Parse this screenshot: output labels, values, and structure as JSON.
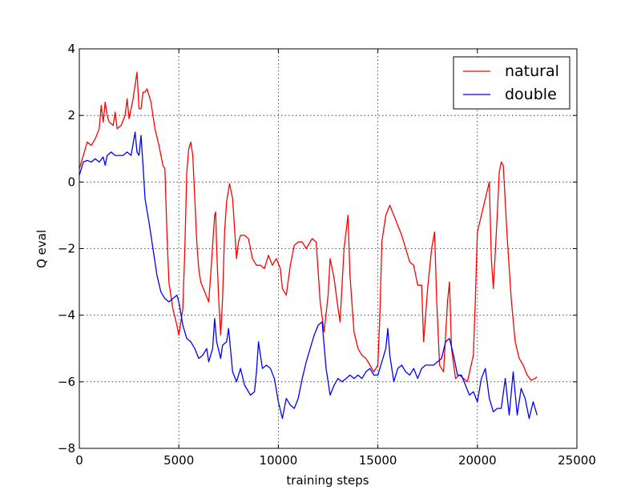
{
  "chart_data": {
    "type": "line",
    "title": "",
    "xlabel": "training steps",
    "ylabel": "Q eval",
    "xlim": [
      0,
      25000
    ],
    "ylim": [
      -8,
      4
    ],
    "xticks": [
      0,
      5000,
      10000,
      15000,
      20000,
      25000
    ],
    "yticks": [
      -8,
      -6,
      -4,
      -2,
      0,
      2,
      4
    ],
    "xtick_labels": [
      "0",
      "5000",
      "10000",
      "15000",
      "20000",
      "25000"
    ],
    "ytick_labels": [
      "−8",
      "−6",
      "−4",
      "−2",
      "0",
      "2",
      "4"
    ],
    "grid": true,
    "legend_position": "top-right",
    "series": [
      {
        "name": "natural",
        "color": "#ff0000",
        "points": [
          [
            0,
            0.4
          ],
          [
            200,
            0.8
          ],
          [
            400,
            1.2
          ],
          [
            600,
            1.1
          ],
          [
            800,
            1.3
          ],
          [
            1000,
            1.6
          ],
          [
            1100,
            2.3
          ],
          [
            1200,
            1.8
          ],
          [
            1300,
            2.4
          ],
          [
            1400,
            2.0
          ],
          [
            1500,
            1.8
          ],
          [
            1700,
            1.7
          ],
          [
            1800,
            2.1
          ],
          [
            1900,
            1.6
          ],
          [
            2100,
            1.7
          ],
          [
            2300,
            2.0
          ],
          [
            2400,
            2.5
          ],
          [
            2500,
            1.9
          ],
          [
            2700,
            2.5
          ],
          [
            2900,
            3.3
          ],
          [
            3000,
            2.2
          ],
          [
            3100,
            2.2
          ],
          [
            3200,
            2.7
          ],
          [
            3300,
            2.7
          ],
          [
            3400,
            2.8
          ],
          [
            3600,
            2.4
          ],
          [
            3800,
            1.6
          ],
          [
            4000,
            1.1
          ],
          [
            4200,
            0.5
          ],
          [
            4300,
            0.4
          ],
          [
            4400,
            -1.5
          ],
          [
            4500,
            -3.0
          ],
          [
            4700,
            -3.8
          ],
          [
            4900,
            -4.3
          ],
          [
            5000,
            -4.6
          ],
          [
            5200,
            -3.8
          ],
          [
            5300,
            -2.0
          ],
          [
            5400,
            0.3
          ],
          [
            5500,
            1.0
          ],
          [
            5600,
            1.2
          ],
          [
            5700,
            0.8
          ],
          [
            5800,
            -0.5
          ],
          [
            5900,
            -1.8
          ],
          [
            6000,
            -2.6
          ],
          [
            6100,
            -3.0
          ],
          [
            6300,
            -3.3
          ],
          [
            6500,
            -3.6
          ],
          [
            6600,
            -2.8
          ],
          [
            6800,
            -1.0
          ],
          [
            6850,
            -0.9
          ],
          [
            6900,
            -2.0
          ],
          [
            7000,
            -3.5
          ],
          [
            7100,
            -4.6
          ],
          [
            7200,
            -3.5
          ],
          [
            7300,
            -1.5
          ],
          [
            7400,
            -0.6
          ],
          [
            7550,
            -0.05
          ],
          [
            7700,
            -0.5
          ],
          [
            7900,
            -2.3
          ],
          [
            8000,
            -1.8
          ],
          [
            8100,
            -1.6
          ],
          [
            8300,
            -1.6
          ],
          [
            8500,
            -1.7
          ],
          [
            8700,
            -2.3
          ],
          [
            8900,
            -2.5
          ],
          [
            9100,
            -2.5
          ],
          [
            9300,
            -2.6
          ],
          [
            9500,
            -2.2
          ],
          [
            9700,
            -2.5
          ],
          [
            9900,
            -2.3
          ],
          [
            10100,
            -2.6
          ],
          [
            10200,
            -3.2
          ],
          [
            10400,
            -3.4
          ],
          [
            10600,
            -2.5
          ],
          [
            10800,
            -1.9
          ],
          [
            11000,
            -1.8
          ],
          [
            11200,
            -1.8
          ],
          [
            11400,
            -2.0
          ],
          [
            11600,
            -1.8
          ],
          [
            11700,
            -1.7
          ],
          [
            11900,
            -1.8
          ],
          [
            12100,
            -3.6
          ],
          [
            12300,
            -4.5
          ],
          [
            12500,
            -3.4
          ],
          [
            12600,
            -2.3
          ],
          [
            12800,
            -2.9
          ],
          [
            13000,
            -3.8
          ],
          [
            13100,
            -4.2
          ],
          [
            13300,
            -2.0
          ],
          [
            13500,
            -1.0
          ],
          [
            13600,
            -2.8
          ],
          [
            13800,
            -4.5
          ],
          [
            14000,
            -5.0
          ],
          [
            14200,
            -5.2
          ],
          [
            14400,
            -5.3
          ],
          [
            14600,
            -5.5
          ],
          [
            14800,
            -5.7
          ],
          [
            15000,
            -5.5
          ],
          [
            15100,
            -4.0
          ],
          [
            15200,
            -1.8
          ],
          [
            15400,
            -1.0
          ],
          [
            15600,
            -0.7
          ],
          [
            15800,
            -1.0
          ],
          [
            16000,
            -1.3
          ],
          [
            16200,
            -1.6
          ],
          [
            16400,
            -2.0
          ],
          [
            16600,
            -2.4
          ],
          [
            16800,
            -2.5
          ],
          [
            17000,
            -3.1
          ],
          [
            17200,
            -3.1
          ],
          [
            17300,
            -4.8
          ],
          [
            17500,
            -3.2
          ],
          [
            17700,
            -2.0
          ],
          [
            17850,
            -1.5
          ],
          [
            17950,
            -3.5
          ],
          [
            18100,
            -5.5
          ],
          [
            18300,
            -5.7
          ],
          [
            18500,
            -3.6
          ],
          [
            18600,
            -3.0
          ],
          [
            18700,
            -5.0
          ],
          [
            18900,
            -5.9
          ],
          [
            19100,
            -5.8
          ],
          [
            19300,
            -5.9
          ],
          [
            19500,
            -6.0
          ],
          [
            19800,
            -5.2
          ],
          [
            19900,
            -3.5
          ],
          [
            20000,
            -1.5
          ],
          [
            20200,
            -1.0
          ],
          [
            20400,
            -0.5
          ],
          [
            20600,
            0.0
          ],
          [
            20700,
            -2.3
          ],
          [
            20800,
            -3.2
          ],
          [
            21000,
            -1.0
          ],
          [
            21100,
            0.3
          ],
          [
            21200,
            0.6
          ],
          [
            21300,
            0.5
          ],
          [
            21500,
            -1.7
          ],
          [
            21700,
            -3.5
          ],
          [
            21900,
            -4.8
          ],
          [
            22100,
            -5.3
          ],
          [
            22300,
            -5.5
          ],
          [
            22500,
            -5.8
          ],
          [
            22700,
            -5.95
          ],
          [
            22900,
            -5.9
          ],
          [
            23000,
            -5.85
          ]
        ]
      },
      {
        "name": "double",
        "color": "#0000ff",
        "points": [
          [
            0,
            0.2
          ],
          [
            200,
            0.6
          ],
          [
            400,
            0.65
          ],
          [
            600,
            0.6
          ],
          [
            800,
            0.7
          ],
          [
            1000,
            0.6
          ],
          [
            1200,
            0.75
          ],
          [
            1300,
            0.5
          ],
          [
            1400,
            0.8
          ],
          [
            1600,
            0.9
          ],
          [
            1800,
            0.8
          ],
          [
            2000,
            0.8
          ],
          [
            2200,
            0.8
          ],
          [
            2400,
            0.9
          ],
          [
            2600,
            0.8
          ],
          [
            2800,
            1.5
          ],
          [
            2900,
            0.9
          ],
          [
            3000,
            0.8
          ],
          [
            3100,
            1.4
          ],
          [
            3200,
            0.5
          ],
          [
            3300,
            -0.5
          ],
          [
            3500,
            -1.2
          ],
          [
            3700,
            -2.0
          ],
          [
            3900,
            -2.8
          ],
          [
            4100,
            -3.3
          ],
          [
            4300,
            -3.5
          ],
          [
            4500,
            -3.6
          ],
          [
            4700,
            -3.5
          ],
          [
            4900,
            -3.4
          ],
          [
            5000,
            -3.6
          ],
          [
            5200,
            -4.3
          ],
          [
            5400,
            -4.7
          ],
          [
            5600,
            -4.8
          ],
          [
            5800,
            -5.0
          ],
          [
            6000,
            -5.3
          ],
          [
            6200,
            -5.2
          ],
          [
            6400,
            -5.0
          ],
          [
            6500,
            -5.4
          ],
          [
            6700,
            -5.0
          ],
          [
            6800,
            -4.1
          ],
          [
            6900,
            -4.8
          ],
          [
            7100,
            -5.3
          ],
          [
            7200,
            -4.9
          ],
          [
            7400,
            -4.8
          ],
          [
            7500,
            -4.4
          ],
          [
            7700,
            -5.7
          ],
          [
            7900,
            -6.0
          ],
          [
            8100,
            -5.6
          ],
          [
            8300,
            -6.1
          ],
          [
            8600,
            -6.4
          ],
          [
            8800,
            -6.3
          ],
          [
            8900,
            -5.7
          ],
          [
            9000,
            -4.8
          ],
          [
            9200,
            -5.6
          ],
          [
            9400,
            -5.5
          ],
          [
            9600,
            -5.6
          ],
          [
            9800,
            -5.9
          ],
          [
            10000,
            -6.6
          ],
          [
            10200,
            -7.1
          ],
          [
            10400,
            -6.5
          ],
          [
            10600,
            -6.7
          ],
          [
            10800,
            -6.8
          ],
          [
            11000,
            -6.5
          ],
          [
            11200,
            -5.9
          ],
          [
            11400,
            -5.4
          ],
          [
            11600,
            -5.0
          ],
          [
            11800,
            -4.6
          ],
          [
            12000,
            -4.3
          ],
          [
            12200,
            -4.2
          ],
          [
            12400,
            -5.6
          ],
          [
            12600,
            -6.4
          ],
          [
            12800,
            -6.1
          ],
          [
            13000,
            -5.9
          ],
          [
            13200,
            -6.0
          ],
          [
            13400,
            -5.9
          ],
          [
            13600,
            -5.8
          ],
          [
            13800,
            -5.9
          ],
          [
            14000,
            -5.8
          ],
          [
            14200,
            -5.9
          ],
          [
            14400,
            -5.7
          ],
          [
            14600,
            -5.6
          ],
          [
            14800,
            -5.8
          ],
          [
            15000,
            -5.8
          ],
          [
            15200,
            -5.4
          ],
          [
            15400,
            -5.0
          ],
          [
            15500,
            -4.4
          ],
          [
            15600,
            -5.2
          ],
          [
            15800,
            -6.0
          ],
          [
            16000,
            -5.6
          ],
          [
            16200,
            -5.5
          ],
          [
            16400,
            -5.7
          ],
          [
            16600,
            -5.8
          ],
          [
            16800,
            -5.6
          ],
          [
            17000,
            -5.9
          ],
          [
            17200,
            -5.6
          ],
          [
            17400,
            -5.5
          ],
          [
            17600,
            -5.5
          ],
          [
            17800,
            -5.5
          ],
          [
            18000,
            -5.4
          ],
          [
            18200,
            -5.3
          ],
          [
            18400,
            -4.8
          ],
          [
            18600,
            -4.7
          ],
          [
            18800,
            -5.2
          ],
          [
            19000,
            -5.8
          ],
          [
            19200,
            -5.8
          ],
          [
            19400,
            -6.1
          ],
          [
            19600,
            -6.4
          ],
          [
            19800,
            -6.3
          ],
          [
            20000,
            -6.6
          ],
          [
            20200,
            -5.9
          ],
          [
            20400,
            -5.6
          ],
          [
            20600,
            -6.5
          ],
          [
            20800,
            -6.9
          ],
          [
            21000,
            -6.8
          ],
          [
            21200,
            -6.8
          ],
          [
            21400,
            -5.9
          ],
          [
            21600,
            -7.0
          ],
          [
            21800,
            -5.7
          ],
          [
            22000,
            -7.0
          ],
          [
            22200,
            -6.2
          ],
          [
            22400,
            -6.5
          ],
          [
            22600,
            -7.1
          ],
          [
            22800,
            -6.6
          ],
          [
            23000,
            -7.0
          ]
        ]
      }
    ]
  }
}
